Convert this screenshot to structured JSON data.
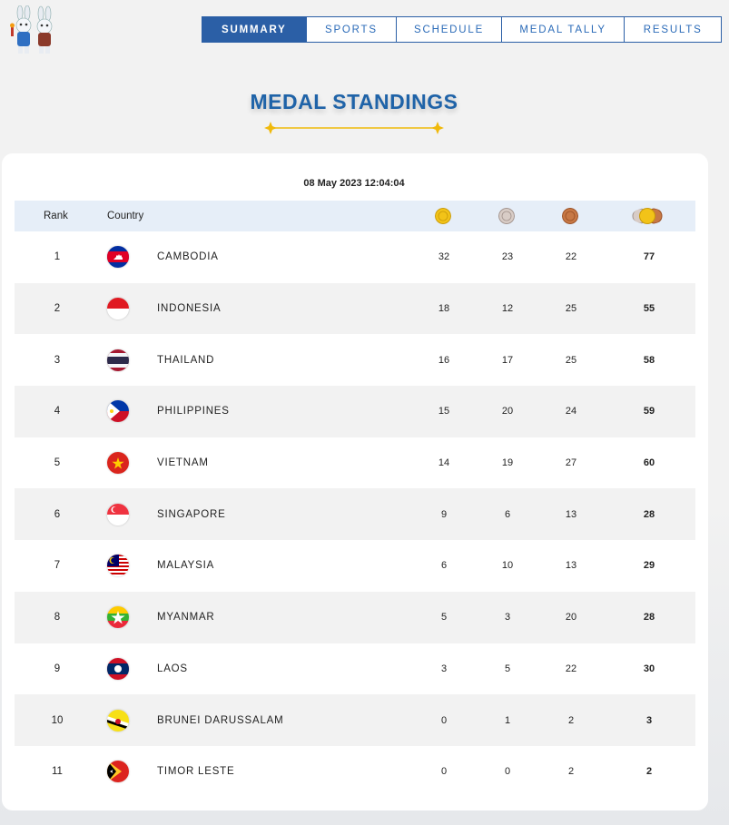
{
  "nav": {
    "items": [
      {
        "label": "SUMMARY",
        "active": true
      },
      {
        "label": "SPORTS",
        "active": false
      },
      {
        "label": "SCHEDULE",
        "active": false
      },
      {
        "label": "MEDAL TALLY",
        "active": false
      },
      {
        "label": "RESULTS",
        "active": false
      }
    ]
  },
  "page": {
    "title": "MEDAL STANDINGS",
    "timestamp": "08 May 2023  12:04:04"
  },
  "table": {
    "headers": {
      "rank": "Rank",
      "country": "Country"
    },
    "medal_icons": [
      "gold-medal-icon",
      "silver-medal-icon",
      "bronze-medal-icon",
      "total-medals-icon"
    ],
    "rows": [
      {
        "rank": "1",
        "country": "CAMBODIA",
        "flag": "cambodia-flag-icon",
        "gold": "32",
        "silver": "23",
        "bronze": "22",
        "total": "77"
      },
      {
        "rank": "2",
        "country": "INDONESIA",
        "flag": "indonesia-flag-icon",
        "gold": "18",
        "silver": "12",
        "bronze": "25",
        "total": "55"
      },
      {
        "rank": "3",
        "country": "THAILAND",
        "flag": "thailand-flag-icon",
        "gold": "16",
        "silver": "17",
        "bronze": "25",
        "total": "58"
      },
      {
        "rank": "4",
        "country": "PHILIPPINES",
        "flag": "philippines-flag-icon",
        "gold": "15",
        "silver": "20",
        "bronze": "24",
        "total": "59"
      },
      {
        "rank": "5",
        "country": "VIETNAM",
        "flag": "vietnam-flag-icon",
        "gold": "14",
        "silver": "19",
        "bronze": "27",
        "total": "60"
      },
      {
        "rank": "6",
        "country": "SINGAPORE",
        "flag": "singapore-flag-icon",
        "gold": "9",
        "silver": "6",
        "bronze": "13",
        "total": "28"
      },
      {
        "rank": "7",
        "country": "MALAYSIA",
        "flag": "malaysia-flag-icon",
        "gold": "6",
        "silver": "10",
        "bronze": "13",
        "total": "29"
      },
      {
        "rank": "8",
        "country": "MYANMAR",
        "flag": "myanmar-flag-icon",
        "gold": "5",
        "silver": "3",
        "bronze": "20",
        "total": "28"
      },
      {
        "rank": "9",
        "country": "LAOS",
        "flag": "laos-flag-icon",
        "gold": "3",
        "silver": "5",
        "bronze": "22",
        "total": "30"
      },
      {
        "rank": "10",
        "country": "BRUNEI DARUSSALAM",
        "flag": "brunei-flag-icon",
        "gold": "0",
        "silver": "1",
        "bronze": "2",
        "total": "3"
      },
      {
        "rank": "11",
        "country": "TIMOR LESTE",
        "flag": "timor-leste-flag-icon",
        "gold": "0",
        "silver": "0",
        "bronze": "2",
        "total": "2"
      }
    ]
  },
  "colors": {
    "nav_active": "#2b5fa6",
    "title": "#1f63a8",
    "header_bg": "#e6eef8",
    "gold": "#f2c318",
    "silver": "#c9bcb6",
    "bronze": "#c06a3c"
  }
}
